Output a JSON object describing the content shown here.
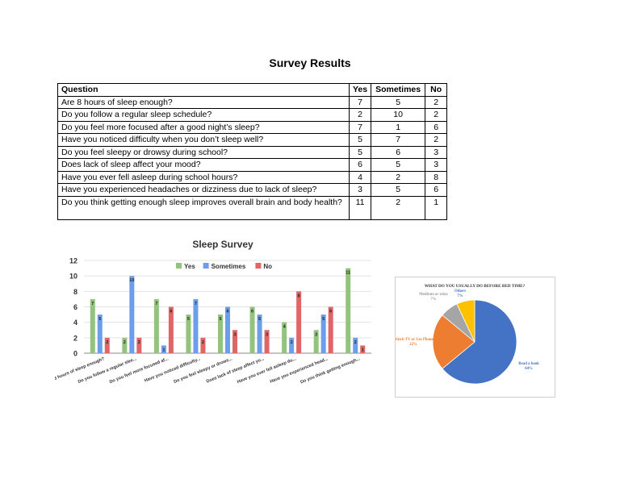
{
  "document": {
    "title": "Survey Results"
  },
  "table": {
    "headers": [
      "Question",
      "Yes",
      "Sometimes",
      "No"
    ],
    "rows": [
      {
        "question": "Are 8 hours of sleep enough?",
        "yes": "7",
        "sometimes": "5",
        "no": "2"
      },
      {
        "question": "Do you follow a regular sleep schedule?",
        "yes": "2",
        "sometimes": "10",
        "no": "2"
      },
      {
        "question": "Do you feel more focused after a good night’s sleep?",
        "yes": "7",
        "sometimes": "1",
        "no": "6"
      },
      {
        "question": "Have you noticed difficulty when you don’t sleep well?",
        "yes": "5",
        "sometimes": "7",
        "no": "2"
      },
      {
        "question": "Do you feel sleepy or drowsy during school?",
        "yes": "5",
        "sometimes": "6",
        "no": "3"
      },
      {
        "question": "Does lack of sleep affect your mood?",
        "yes": "6",
        "sometimes": "5",
        "no": "3"
      },
      {
        "question": "Have you ever fell asleep during school hours?",
        "yes": "4",
        "sometimes": "2",
        "no": "8"
      },
      {
        "question": "Have you experienced headaches or dizziness due to lack of sleep?",
        "yes": "3",
        "sometimes": "5",
        "no": "6"
      },
      {
        "question": "Do you think getting enough sleep improves overall brain and body health?",
        "yes": "11",
        "sometimes": "2",
        "no": "1"
      }
    ]
  },
  "chart_data": [
    {
      "type": "bar",
      "title": "Sleep Survey",
      "categories": [
        "Are 8 hours of sleep enough?",
        "Do you follow a regular slee...",
        "Do you feel more focused af...",
        "Have you noticed difficulty...",
        "Do you feel sleepy or drows...",
        "Does lack of sleep affect yo...",
        "Have you ever fell asleep du...",
        "Have you experienced head...",
        "Do you think getting enough..."
      ],
      "series": [
        {
          "name": "Yes",
          "color": "#93c47d",
          "values": [
            7,
            2,
            7,
            5,
            5,
            6,
            4,
            3,
            11
          ]
        },
        {
          "name": "Sometimes",
          "color": "#6d9eeb",
          "values": [
            5,
            10,
            1,
            7,
            6,
            5,
            2,
            5,
            2
          ]
        },
        {
          "name": "No",
          "color": "#e06666",
          "values": [
            2,
            2,
            6,
            2,
            3,
            3,
            8,
            6,
            1
          ]
        }
      ],
      "ylim": [
        0,
        12
      ],
      "yticks": [
        0,
        2,
        4,
        6,
        8,
        10,
        12
      ],
      "grid": true,
      "legend": "top"
    },
    {
      "type": "pie",
      "title": "WHAT DO YOU USUALLY DO BEFORE BED TIME?",
      "slices": [
        {
          "label": "Read a book",
          "value": 64,
          "display": "64%",
          "color": "#4472c4"
        },
        {
          "label": "Watch TV or Use Phone",
          "value": 22,
          "display": "22%",
          "color": "#ed7d31"
        },
        {
          "label": "Meditate or relax",
          "value": 7,
          "display": "7%",
          "color": "#a5a5a5"
        },
        {
          "label": "Others",
          "value": 7,
          "display": "7%",
          "color": "#ffc000"
        }
      ]
    }
  ]
}
